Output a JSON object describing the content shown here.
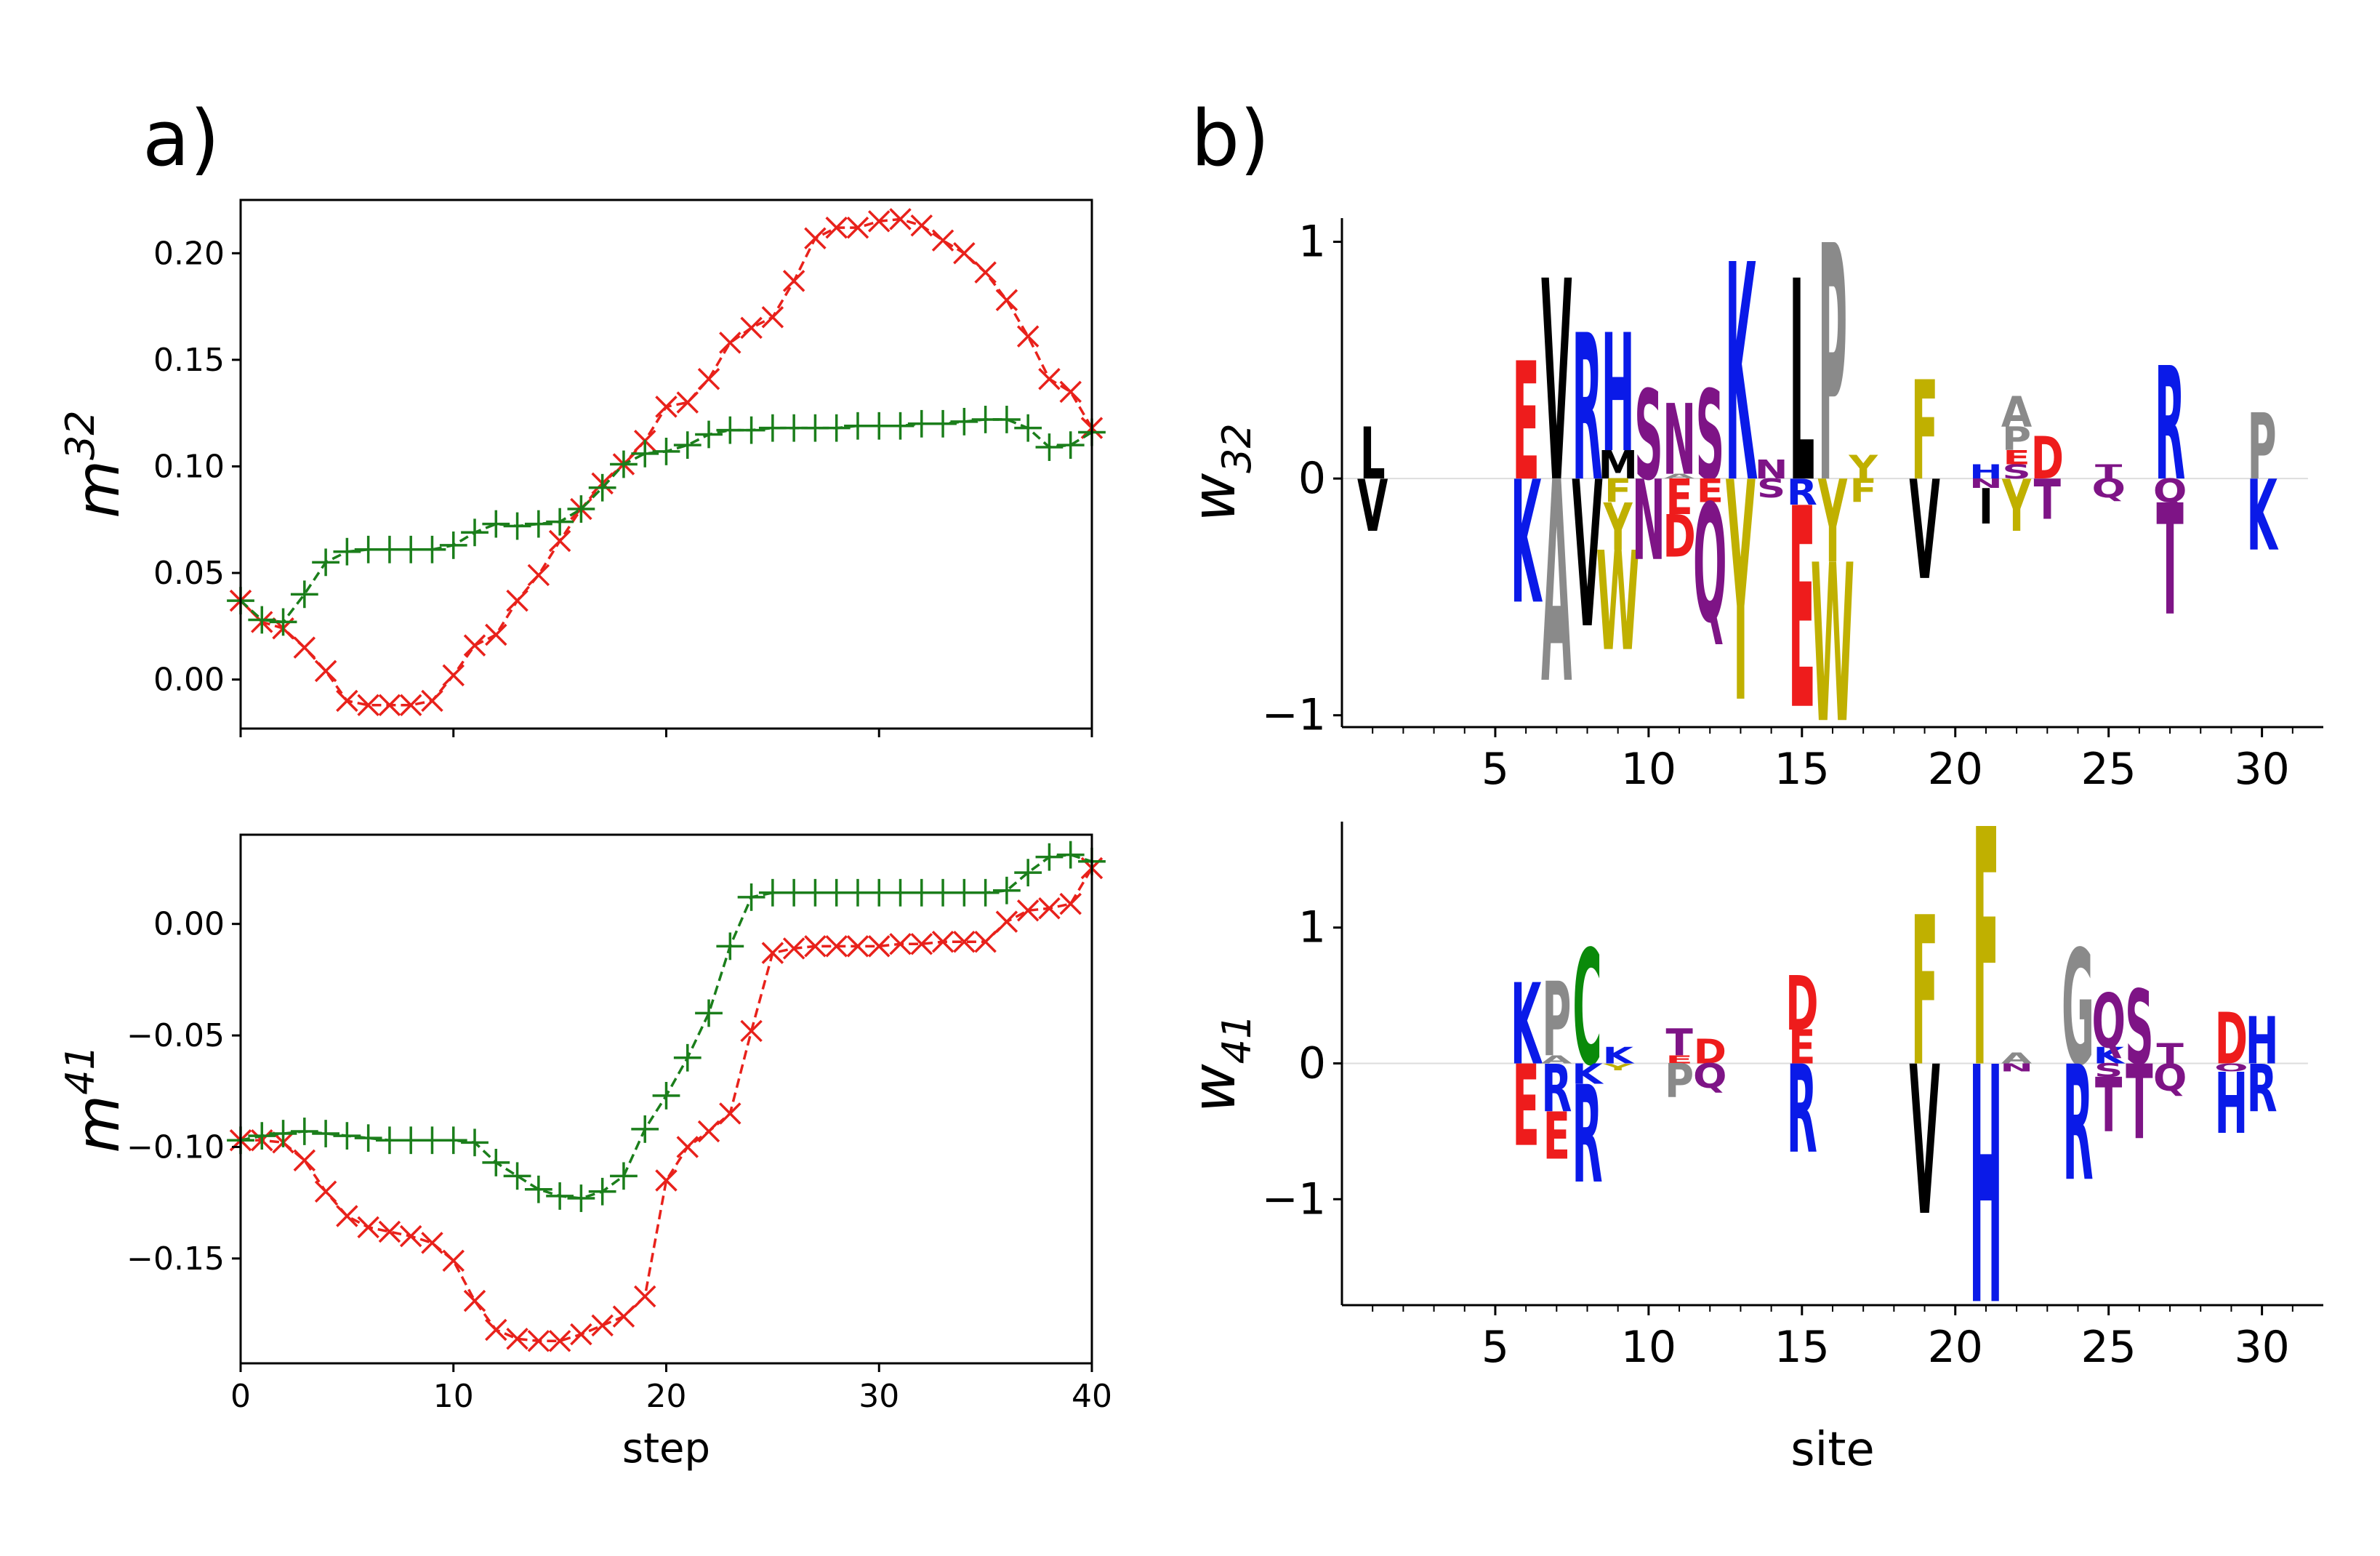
{
  "panel_labels": {
    "a": "a)",
    "b": "b)"
  },
  "chart_data": [
    {
      "id": "m32",
      "type": "line",
      "panel": "a",
      "title": "",
      "ylabel_base": "m",
      "ylabel_sup": "32",
      "xlabel": "",
      "xlim": [
        0,
        40
      ],
      "ylim": [
        -0.023,
        0.225
      ],
      "yticks": [
        0.0,
        0.05,
        0.1,
        0.15,
        0.2
      ],
      "ytick_labels": [
        "0.00",
        "0.05",
        "0.10",
        "0.15",
        "0.20"
      ],
      "xticks": [
        0,
        10,
        20,
        30,
        40
      ],
      "xtick_labels": [],
      "series": [
        {
          "name": "red",
          "color": "#e8211b",
          "marker": "x",
          "values": [
            0.037,
            0.027,
            0.024,
            0.015,
            0.004,
            -0.01,
            -0.012,
            -0.012,
            -0.012,
            -0.01,
            0.002,
            0.016,
            0.021,
            0.037,
            0.049,
            0.065,
            0.08,
            0.092,
            0.101,
            0.112,
            0.128,
            0.13,
            0.141,
            0.158,
            0.165,
            0.17,
            0.187,
            0.207,
            0.212,
            0.212,
            0.215,
            0.216,
            0.213,
            0.206,
            0.2,
            0.191,
            0.178,
            0.161,
            0.141,
            0.135,
            0.118
          ]
        },
        {
          "name": "green",
          "color": "#1b7e1b",
          "marker": "+",
          "values": [
            0.037,
            0.028,
            0.027,
            0.04,
            0.055,
            0.06,
            0.061,
            0.061,
            0.061,
            0.061,
            0.063,
            0.069,
            0.073,
            0.072,
            0.073,
            0.074,
            0.08,
            0.09,
            0.101,
            0.106,
            0.107,
            0.11,
            0.115,
            0.117,
            0.117,
            0.118,
            0.118,
            0.118,
            0.118,
            0.119,
            0.119,
            0.119,
            0.12,
            0.12,
            0.121,
            0.122,
            0.122,
            0.118,
            0.109,
            0.11,
            0.116
          ]
        }
      ]
    },
    {
      "id": "m41",
      "type": "line",
      "panel": "a",
      "title": "",
      "ylabel_base": "m",
      "ylabel_sup": "41",
      "xlabel": "step",
      "xlim": [
        0,
        40
      ],
      "ylim": [
        -0.197,
        0.04
      ],
      "yticks": [
        -0.15,
        -0.1,
        -0.05,
        0.0
      ],
      "ytick_labels": [
        "−0.15",
        "−0.10",
        "−0.05",
        "0.00"
      ],
      "xticks": [
        0,
        10,
        20,
        30,
        40
      ],
      "xtick_labels": [
        "0",
        "10",
        "20",
        "30",
        "40"
      ],
      "series": [
        {
          "name": "red",
          "color": "#e8211b",
          "marker": "x",
          "values": [
            -0.097,
            -0.097,
            -0.098,
            -0.106,
            -0.12,
            -0.131,
            -0.136,
            -0.138,
            -0.14,
            -0.143,
            -0.151,
            -0.169,
            -0.182,
            -0.186,
            -0.187,
            -0.187,
            -0.184,
            -0.18,
            -0.176,
            -0.167,
            -0.115,
            -0.1,
            -0.093,
            -0.085,
            -0.048,
            -0.013,
            -0.011,
            -0.01,
            -0.01,
            -0.01,
            -0.01,
            -0.009,
            -0.009,
            -0.008,
            -0.008,
            -0.008,
            0.001,
            0.006,
            0.007,
            0.009,
            0.025
          ]
        },
        {
          "name": "green",
          "color": "#1b7e1b",
          "marker": "+",
          "values": [
            -0.097,
            -0.095,
            -0.094,
            -0.093,
            -0.094,
            -0.095,
            -0.096,
            -0.097,
            -0.097,
            -0.097,
            -0.097,
            -0.098,
            -0.107,
            -0.113,
            -0.119,
            -0.122,
            -0.123,
            -0.12,
            -0.113,
            -0.092,
            -0.077,
            -0.06,
            -0.04,
            -0.01,
            0.012,
            0.014,
            0.014,
            0.014,
            0.014,
            0.014,
            0.014,
            0.014,
            0.014,
            0.014,
            0.014,
            0.014,
            0.015,
            0.023,
            0.03,
            0.031,
            0.028
          ]
        }
      ]
    },
    {
      "id": "w32",
      "type": "bar",
      "subtype": "sequence-logo",
      "panel": "b",
      "title": "",
      "ylabel_base": "w",
      "ylabel_sub": "32",
      "xlabel": "",
      "xlim": [
        0,
        32
      ],
      "ylim": [
        -1.05,
        1.1
      ],
      "yticks": [
        -1,
        0,
        1
      ],
      "ytick_labels": [
        "−1",
        "0",
        "1"
      ],
      "xticks": [
        5,
        10,
        15,
        20,
        25,
        30
      ],
      "xtick_labels": [
        "5",
        "10",
        "15",
        "20",
        "25",
        "30"
      ],
      "letters": [
        {
          "site": 1,
          "letter": "L",
          "value": 0.22
        },
        {
          "site": 1,
          "letter": "V",
          "value": -0.22
        },
        {
          "site": 6,
          "letter": "E",
          "value": 0.5
        },
        {
          "site": 6,
          "letter": "K",
          "value": -0.52
        },
        {
          "site": 7,
          "letter": "V",
          "value": 0.85
        },
        {
          "site": 7,
          "letter": "A",
          "value": -0.85
        },
        {
          "site": 8,
          "letter": "R",
          "value": 0.62
        },
        {
          "site": 8,
          "letter": "V",
          "value": -0.62
        },
        {
          "site": 9,
          "letter": "M",
          "value": 0.12
        },
        {
          "site": 9,
          "letter": "H",
          "value": 0.5
        },
        {
          "site": 9,
          "letter": "F",
          "value": -0.1
        },
        {
          "site": 9,
          "letter": "Y",
          "value": -0.2
        },
        {
          "site": 9,
          "letter": "W",
          "value": -0.42
        },
        {
          "site": 10,
          "letter": "S",
          "value": 0.38
        },
        {
          "site": 10,
          "letter": "N",
          "value": -0.34
        },
        {
          "site": 11,
          "letter": "A",
          "value": 0.02
        },
        {
          "site": 11,
          "letter": "N",
          "value": 0.3
        },
        {
          "site": 11,
          "letter": "D",
          "value": -0.18
        },
        {
          "site": 11,
          "letter": "E",
          "value": -0.15
        },
        {
          "site": 12,
          "letter": "S",
          "value": 0.38
        },
        {
          "site": 12,
          "letter": "E",
          "value": -0.1
        },
        {
          "site": 12,
          "letter": "Q",
          "value": -0.5
        },
        {
          "site": 13,
          "letter": "K",
          "value": 0.92
        },
        {
          "site": 13,
          "letter": "Y",
          "value": -0.93
        },
        {
          "site": 14,
          "letter": "N",
          "value": 0.08
        },
        {
          "site": 14,
          "letter": "S",
          "value": -0.08
        },
        {
          "site": 15,
          "letter": "L",
          "value": 0.85
        },
        {
          "site": 15,
          "letter": "R",
          "value": -0.11
        },
        {
          "site": 15,
          "letter": "E",
          "value": -0.85
        },
        {
          "site": 16,
          "letter": "P",
          "value": 1.0
        },
        {
          "site": 16,
          "letter": "Y",
          "value": -0.35
        },
        {
          "site": 16,
          "letter": "W",
          "value": -0.67
        },
        {
          "site": 17,
          "letter": "Y",
          "value": 0.1
        },
        {
          "site": 17,
          "letter": "F",
          "value": -0.1
        },
        {
          "site": 19,
          "letter": "F",
          "value": 0.42
        },
        {
          "site": 19,
          "letter": "V",
          "value": -0.42
        },
        {
          "site": 21,
          "letter": "H",
          "value": 0.06
        },
        {
          "site": 21,
          "letter": "N",
          "value": -0.04
        },
        {
          "site": 21,
          "letter": "I",
          "value": -0.15
        },
        {
          "site": 22,
          "letter": "P",
          "value": 0.1
        },
        {
          "site": 22,
          "letter": "S",
          "value": 0.06
        },
        {
          "site": 22,
          "letter": "A",
          "value": 0.13
        },
        {
          "site": 22,
          "letter": "E",
          "value": 0.06
        },
        {
          "site": 22,
          "letter": "Y",
          "value": -0.22
        },
        {
          "site": 23,
          "letter": "D",
          "value": 0.18
        },
        {
          "site": 23,
          "letter": "T",
          "value": -0.17
        },
        {
          "site": 25,
          "letter": "T",
          "value": 0.06
        },
        {
          "site": 25,
          "letter": "Q",
          "value": -0.08
        },
        {
          "site": 27,
          "letter": "R",
          "value": 0.48
        },
        {
          "site": 27,
          "letter": "Q",
          "value": -0.1
        },
        {
          "site": 27,
          "letter": "T",
          "value": -0.47
        },
        {
          "site": 30,
          "letter": "P",
          "value": 0.28
        },
        {
          "site": 30,
          "letter": "K",
          "value": -0.3
        }
      ]
    },
    {
      "id": "w41",
      "type": "bar",
      "subtype": "sequence-logo",
      "panel": "b",
      "title": "",
      "ylabel_base": "w",
      "ylabel_sub": "41",
      "xlabel": "site",
      "xlim": [
        0,
        32
      ],
      "ylim": [
        -1.78,
        1.78
      ],
      "yticks": [
        -1,
        0,
        1
      ],
      "ytick_labels": [
        "−1",
        "0",
        "1"
      ],
      "xticks": [
        5,
        10,
        15,
        20,
        25,
        30
      ],
      "xtick_labels": [
        "5",
        "10",
        "15",
        "20",
        "25",
        "30"
      ],
      "letters": [
        {
          "site": 6,
          "letter": "K",
          "value": 0.6
        },
        {
          "site": 6,
          "letter": "E",
          "value": -0.6
        },
        {
          "site": 7,
          "letter": "A",
          "value": 0.06
        },
        {
          "site": 7,
          "letter": "P",
          "value": 0.55
        },
        {
          "site": 7,
          "letter": "R",
          "value": -0.35
        },
        {
          "site": 7,
          "letter": "E",
          "value": -0.35
        },
        {
          "site": 8,
          "letter": "C",
          "value": 0.85
        },
        {
          "site": 8,
          "letter": "K",
          "value": -0.15
        },
        {
          "site": 8,
          "letter": "R",
          "value": -0.72
        },
        {
          "site": 9,
          "letter": "K",
          "value": 0.12
        },
        {
          "site": 9,
          "letter": "Y",
          "value": -0.05
        },
        {
          "site": 11,
          "letter": "E",
          "value": 0.06
        },
        {
          "site": 11,
          "letter": "T",
          "value": 0.2
        },
        {
          "site": 11,
          "letter": "P",
          "value": -0.25
        },
        {
          "site": 12,
          "letter": "D",
          "value": 0.18
        },
        {
          "site": 12,
          "letter": "Q",
          "value": -0.18
        },
        {
          "site": 15,
          "letter": "E",
          "value": 0.25
        },
        {
          "site": 15,
          "letter": "D",
          "value": 0.4
        },
        {
          "site": 15,
          "letter": "R",
          "value": -0.65
        },
        {
          "site": 19,
          "letter": "F",
          "value": 1.1
        },
        {
          "site": 19,
          "letter": "V",
          "value": -1.1
        },
        {
          "site": 21,
          "letter": "F",
          "value": 1.75
        },
        {
          "site": 21,
          "letter": "H",
          "value": -1.75
        },
        {
          "site": 22,
          "letter": "A",
          "value": 0.08
        },
        {
          "site": 22,
          "letter": "N",
          "value": -0.06
        },
        {
          "site": 24,
          "letter": "G",
          "value": 0.85
        },
        {
          "site": 24,
          "letter": "R",
          "value": -0.85
        },
        {
          "site": 25,
          "letter": "K",
          "value": 0.12
        },
        {
          "site": 25,
          "letter": "Q",
          "value": 0.4
        },
        {
          "site": 25,
          "letter": "S",
          "value": -0.1
        },
        {
          "site": 25,
          "letter": "T",
          "value": -0.4
        },
        {
          "site": 26,
          "letter": "S",
          "value": 0.55
        },
        {
          "site": 26,
          "letter": "T",
          "value": -0.55
        },
        {
          "site": 27,
          "letter": "T",
          "value": 0.15
        },
        {
          "site": 27,
          "letter": "Q",
          "value": -0.2
        },
        {
          "site": 29,
          "letter": "D",
          "value": 0.38
        },
        {
          "site": 29,
          "letter": "O",
          "value": -0.06
        },
        {
          "site": 29,
          "letter": "H",
          "value": -0.45
        },
        {
          "site": 30,
          "letter": "H",
          "value": 0.35
        },
        {
          "site": 30,
          "letter": "R",
          "value": -0.35
        }
      ]
    }
  ],
  "letter_colors": {
    "D": "#ee1c1c",
    "E": "#ee1c1c",
    "K": "#0a1ae8",
    "R": "#0a1ae8",
    "H": "#0a1ae8",
    "S": "#7e1486",
    "T": "#7e1486",
    "N": "#7e1486",
    "Q": "#7e1486",
    "O": "#7e1486",
    "A": "#8a8a8a",
    "G": "#8a8a8a",
    "P": "#8a8a8a",
    "F": "#c0b000",
    "W": "#c0b000",
    "Y": "#c0b000",
    "C": "#0a8a0a",
    "V": "#000000",
    "L": "#000000",
    "I": "#000000",
    "M": "#000000"
  }
}
